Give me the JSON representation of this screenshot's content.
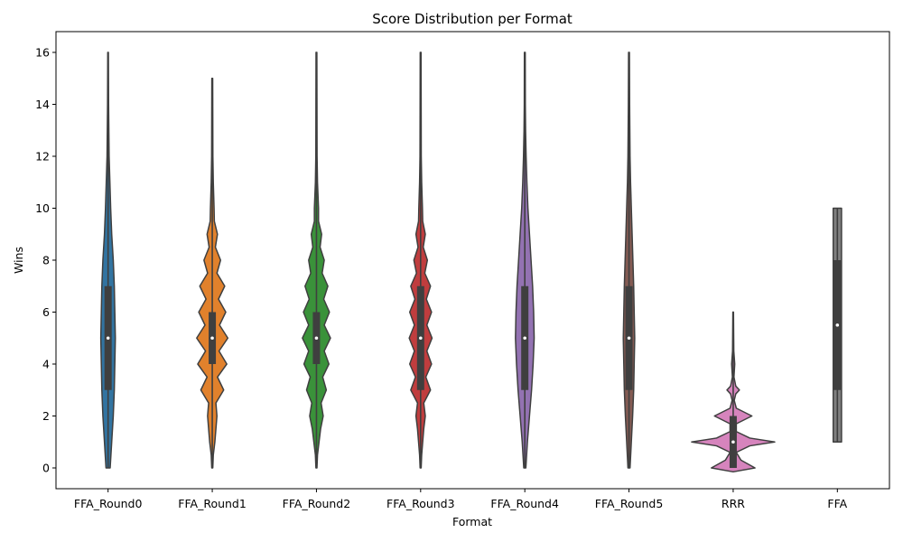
{
  "chart_data": {
    "type": "violin",
    "title": "Score Distribution per Format",
    "xlabel": "Format",
    "ylabel": "Wins",
    "ylim": [
      -0.8,
      16.8
    ],
    "yticks": [
      0,
      2,
      4,
      6,
      8,
      10,
      12,
      14,
      16
    ],
    "grid": false,
    "categories": [
      "FFA_Round0",
      "FFA_Round1",
      "FFA_Round2",
      "FFA_Round3",
      "FFA_Round4",
      "FFA_Round5",
      "RRR",
      "FFA"
    ],
    "series": [
      {
        "category": "FFA_Round0",
        "color": "#3274a1",
        "min": 0,
        "q1": 3,
        "median": 5,
        "q3": 7,
        "max": 16,
        "density": [
          [
            0,
            0.04
          ],
          [
            1,
            0.07
          ],
          [
            2,
            0.1
          ],
          [
            3,
            0.12
          ],
          [
            4,
            0.13
          ],
          [
            5,
            0.14
          ],
          [
            6,
            0.13
          ],
          [
            7,
            0.12
          ],
          [
            8,
            0.1
          ],
          [
            9,
            0.07
          ],
          [
            10,
            0.05
          ],
          [
            11,
            0.035
          ],
          [
            12,
            0.02
          ],
          [
            14,
            0.01
          ],
          [
            16,
            0.006
          ]
        ]
      },
      {
        "category": "FFA_Round1",
        "color": "#e1812c",
        "min": 0,
        "q1": 4,
        "median": 5,
        "q3": 6,
        "max": 15,
        "density": [
          [
            0,
            0.01
          ],
          [
            0.5,
            0.02
          ],
          [
            1,
            0.05
          ],
          [
            1.5,
            0.07
          ],
          [
            2,
            0.09
          ],
          [
            2.5,
            0.07
          ],
          [
            3,
            0.22
          ],
          [
            3.5,
            0.1
          ],
          [
            4,
            0.28
          ],
          [
            4.5,
            0.13
          ],
          [
            5,
            0.3
          ],
          [
            5.5,
            0.14
          ],
          [
            6,
            0.26
          ],
          [
            6.5,
            0.12
          ],
          [
            7,
            0.24
          ],
          [
            7.5,
            0.09
          ],
          [
            8,
            0.16
          ],
          [
            8.5,
            0.06
          ],
          [
            9,
            0.1
          ],
          [
            9.5,
            0.04
          ],
          [
            10,
            0.035
          ],
          [
            11,
            0.02
          ],
          [
            12,
            0.012
          ],
          [
            15,
            0.008
          ]
        ]
      },
      {
        "category": "FFA_Round2",
        "color": "#3a923a",
        "min": 0,
        "q1": 4,
        "median": 5,
        "q3": 6,
        "max": 16,
        "density": [
          [
            0,
            0.01
          ],
          [
            0.5,
            0.02
          ],
          [
            1,
            0.05
          ],
          [
            1.5,
            0.08
          ],
          [
            2,
            0.13
          ],
          [
            2.5,
            0.09
          ],
          [
            3,
            0.19
          ],
          [
            3.5,
            0.12
          ],
          [
            4,
            0.24
          ],
          [
            4.5,
            0.15
          ],
          [
            5,
            0.27
          ],
          [
            5.5,
            0.15
          ],
          [
            6,
            0.25
          ],
          [
            6.5,
            0.14
          ],
          [
            7,
            0.22
          ],
          [
            7.5,
            0.11
          ],
          [
            8,
            0.15
          ],
          [
            8.5,
            0.07
          ],
          [
            9,
            0.1
          ],
          [
            9.5,
            0.04
          ],
          [
            10,
            0.04
          ],
          [
            11,
            0.02
          ],
          [
            12,
            0.012
          ],
          [
            16,
            0.008
          ]
        ]
      },
      {
        "category": "FFA_Round3",
        "color": "#c03d3e",
        "min": 0,
        "q1": 3,
        "median": 5,
        "q3": 7,
        "max": 16,
        "density": [
          [
            0,
            0.01
          ],
          [
            0.5,
            0.02
          ],
          [
            1,
            0.04
          ],
          [
            1.5,
            0.06
          ],
          [
            2,
            0.09
          ],
          [
            2.5,
            0.06
          ],
          [
            3,
            0.19
          ],
          [
            3.5,
            0.1
          ],
          [
            4,
            0.21
          ],
          [
            4.5,
            0.12
          ],
          [
            5,
            0.22
          ],
          [
            5.5,
            0.12
          ],
          [
            6,
            0.21
          ],
          [
            6.5,
            0.11
          ],
          [
            7,
            0.19
          ],
          [
            7.5,
            0.08
          ],
          [
            8,
            0.13
          ],
          [
            8.5,
            0.05
          ],
          [
            9,
            0.09
          ],
          [
            9.5,
            0.04
          ],
          [
            10,
            0.035
          ],
          [
            11,
            0.02
          ],
          [
            12,
            0.012
          ],
          [
            16,
            0.008
          ]
        ]
      },
      {
        "category": "FFA_Round4",
        "color": "#9372b2",
        "min": 0,
        "q1": 3,
        "median": 5,
        "q3": 7,
        "max": 16,
        "density": [
          [
            0,
            0.02
          ],
          [
            1,
            0.05
          ],
          [
            2,
            0.09
          ],
          [
            3,
            0.13
          ],
          [
            4,
            0.16
          ],
          [
            5,
            0.18
          ],
          [
            6,
            0.17
          ],
          [
            7,
            0.15
          ],
          [
            8,
            0.12
          ],
          [
            9,
            0.09
          ],
          [
            10,
            0.06
          ],
          [
            11,
            0.04
          ],
          [
            12,
            0.025
          ],
          [
            13,
            0.015
          ],
          [
            14,
            0.01
          ],
          [
            16,
            0.008
          ]
        ]
      },
      {
        "category": "FFA_Round5",
        "color": "#845b53",
        "min": 0,
        "q1": 3,
        "median": 5,
        "q3": 7,
        "max": 16,
        "density": [
          [
            0,
            0.02
          ],
          [
            1,
            0.045
          ],
          [
            2,
            0.07
          ],
          [
            3,
            0.09
          ],
          [
            4,
            0.1
          ],
          [
            5,
            0.11
          ],
          [
            6,
            0.1
          ],
          [
            7,
            0.09
          ],
          [
            8,
            0.075
          ],
          [
            9,
            0.06
          ],
          [
            10,
            0.045
          ],
          [
            11,
            0.03
          ],
          [
            12,
            0.02
          ],
          [
            14,
            0.012
          ],
          [
            16,
            0.008
          ]
        ]
      },
      {
        "category": "RRR",
        "color": "#d684bd",
        "min": 0,
        "q1": 0,
        "median": 1,
        "q3": 2,
        "max": 6,
        "density": [
          [
            -0.15,
            0.0
          ],
          [
            0,
            0.42
          ],
          [
            0.3,
            0.15
          ],
          [
            0.6,
            0.06
          ],
          [
            0.85,
            0.32
          ],
          [
            1,
            0.8
          ],
          [
            1.15,
            0.32
          ],
          [
            1.4,
            0.06
          ],
          [
            1.7,
            0.06
          ],
          [
            2,
            0.36
          ],
          [
            2.3,
            0.06
          ],
          [
            2.6,
            0.02
          ],
          [
            2.85,
            0.05
          ],
          [
            3,
            0.12
          ],
          [
            3.15,
            0.05
          ],
          [
            3.5,
            0.015
          ],
          [
            4,
            0.03
          ],
          [
            4.5,
            0.012
          ],
          [
            5,
            0.01
          ],
          [
            6,
            0.006
          ]
        ]
      },
      {
        "category": "FFA",
        "color": "#7f7f7f",
        "min": 1,
        "q1": 3,
        "median": 5.5,
        "q3": 8,
        "max": 10,
        "density": [
          [
            1,
            0.08
          ],
          [
            2,
            0.08
          ],
          [
            3,
            0.08
          ],
          [
            4,
            0.08
          ],
          [
            5,
            0.08
          ],
          [
            6,
            0.08
          ],
          [
            7,
            0.08
          ],
          [
            8,
            0.08
          ],
          [
            9,
            0.08
          ],
          [
            10,
            0.08
          ]
        ]
      }
    ]
  }
}
